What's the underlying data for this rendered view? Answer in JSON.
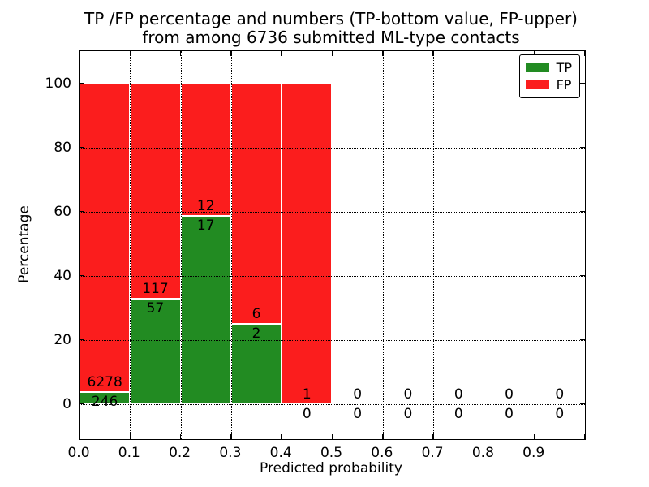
{
  "title": {
    "line1": "TP /FP percentage and numbers (TP-bottom value, FP-upper)",
    "line2": "from among 6736 submitted ML-type contacts"
  },
  "chart_data": {
    "type": "bar",
    "stacked": true,
    "normalized": "each bin scaled to 100% (TP bottom, FP top); labels show raw counts",
    "title": "TP /FP percentage and numbers (TP-bottom value, FP-upper) from among 6736 submitted ML-type contacts",
    "xlabel": "Predicted probability",
    "ylabel": "Percentage",
    "bins_start": [
      0.0,
      0.1,
      0.2,
      0.3,
      0.4,
      0.5,
      0.6,
      0.7,
      0.8,
      0.9
    ],
    "bin_width": 0.1,
    "series": [
      {
        "name": "TP",
        "color": "#228b22",
        "counts": [
          246,
          57,
          17,
          2,
          0,
          0,
          0,
          0,
          0,
          0
        ]
      },
      {
        "name": "FP",
        "color": "#fb1d1d",
        "counts": [
          6278,
          117,
          12,
          6,
          1,
          0,
          0,
          0,
          0,
          0
        ]
      }
    ],
    "tp_percent_by_bin": [
      3.77,
      32.76,
      58.62,
      25.0,
      0.0,
      null,
      null,
      null,
      null,
      null
    ],
    "total_contacts": 6736,
    "xticks": [
      "0.0",
      "0.1",
      "0.2",
      "0.3",
      "0.4",
      "0.5",
      "0.6",
      "0.7",
      "0.8",
      "0.9"
    ],
    "yticks": [
      "0",
      "20",
      "40",
      "60",
      "80",
      "100"
    ],
    "xlim": [
      0.0,
      1.0
    ],
    "ylim": [
      -11,
      110
    ],
    "grid": "dotted",
    "legend_position": "upper right"
  },
  "legend": {
    "items": [
      {
        "label": "TP",
        "color": "#228b22"
      },
      {
        "label": "FP",
        "color": "#fb1d1d"
      }
    ]
  },
  "axes": {
    "xlabel": "Predicted probability",
    "ylabel": "Percentage"
  }
}
